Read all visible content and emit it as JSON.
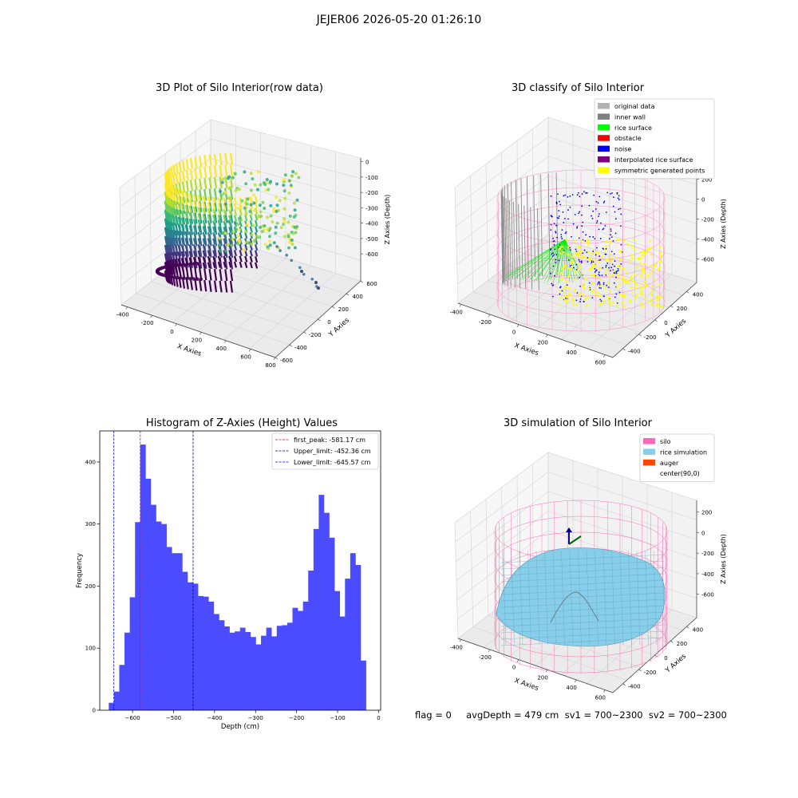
{
  "suptitle": "JEJER06 2026-05-20 01:26:10",
  "panels": {
    "raw": {
      "title": "3D Plot of Silo Interior(row data)",
      "xlabel": "X Axies",
      "ylabel": "Y Axies",
      "zlabel": "Z Axies (Depth)",
      "xticks": [
        "-400",
        "-200",
        "0",
        "200",
        "400",
        "600",
        "800"
      ],
      "yticks": [
        "600",
        "400",
        "200",
        "0",
        "-200",
        "-400",
        "-600"
      ],
      "zticks": [
        "0",
        "-100",
        "-200",
        "-300",
        "-400",
        "-500",
        "-600"
      ]
    },
    "classify": {
      "title": "3D classify of Silo Interior",
      "xlabel": "X Axies",
      "ylabel": "Y Axies",
      "zlabel": "Z Axies (Depth)",
      "xticks": [
        "-400",
        "-200",
        "0",
        "200",
        "400",
        "600"
      ],
      "yticks": [
        "400",
        "200",
        "0",
        "-200",
        "-400"
      ],
      "zticks": [
        "200",
        "0",
        "-200",
        "-400",
        "-600"
      ],
      "legend": [
        {
          "label": "original data",
          "color": "#b3b3b3"
        },
        {
          "label": "inner wall",
          "color": "#808080"
        },
        {
          "label": "rice surface",
          "color": "#00ff00"
        },
        {
          "label": "obstacle",
          "color": "#ff0000"
        },
        {
          "label": "noise",
          "color": "#0000ff"
        },
        {
          "label": "interpolated rice surface",
          "color": "#800080"
        },
        {
          "label": "symmetric generated points",
          "color": "#ffff00"
        }
      ]
    },
    "simulation": {
      "title": "3D simulation of Silo Interior",
      "xlabel": "X Axies",
      "ylabel": "Y Axies",
      "zlabel": "Z Axies (Depth)",
      "xticks": [
        "-400",
        "-200",
        "0",
        "200",
        "400",
        "600"
      ],
      "yticks": [
        "400",
        "200",
        "0",
        "-200",
        "-400"
      ],
      "zticks": [
        "200",
        "0",
        "-200",
        "-400",
        "-600"
      ],
      "legend": [
        {
          "label": "silo",
          "color": "#ff69b4"
        },
        {
          "label": "rice simulation",
          "color": "#87ceeb"
        },
        {
          "label": "auger",
          "color": "#ff4500"
        },
        {
          "label": "center(90,0)",
          "color": ""
        }
      ]
    }
  },
  "footer": "flag = 0     avgDepth = 479 cm  sv1 = 700~2300  sv2 = 700~2300",
  "chart_data": {
    "type": "bar",
    "title": "Histogram of Z-Axies (Height) Values",
    "xlabel": "Depth (cm)",
    "ylabel": "Frequency",
    "xlim": [
      -680,
      5
    ],
    "ylim": [
      0,
      450
    ],
    "xticks": [
      -600,
      -500,
      -400,
      -300,
      -200,
      -100,
      0
    ],
    "yticks": [
      0,
      100,
      200,
      300,
      400
    ],
    "bin_start": -658,
    "bin_width": 12.8,
    "values": [
      12,
      30,
      73,
      125,
      182,
      303,
      428,
      373,
      331,
      304,
      300,
      263,
      253,
      253,
      223,
      206,
      204,
      184,
      183,
      175,
      155,
      145,
      135,
      125,
      127,
      133,
      126,
      118,
      106,
      120,
      133,
      119,
      136,
      137,
      141,
      165,
      160,
      175,
      225,
      292,
      347,
      318,
      278,
      192,
      151,
      212,
      253,
      234,
      80
    ],
    "vlines": [
      {
        "x": -581.17,
        "color": "#ff0000",
        "label": "first_peak: -581.17 cm"
      },
      {
        "x": -452.36,
        "color": "#00008b",
        "label": "Upper_limit: -452.36 cm"
      },
      {
        "x": -645.57,
        "color": "#0000ff",
        "label": "Lower_limit: -645.57 cm"
      }
    ],
    "bar_color": "#4b4bff"
  }
}
